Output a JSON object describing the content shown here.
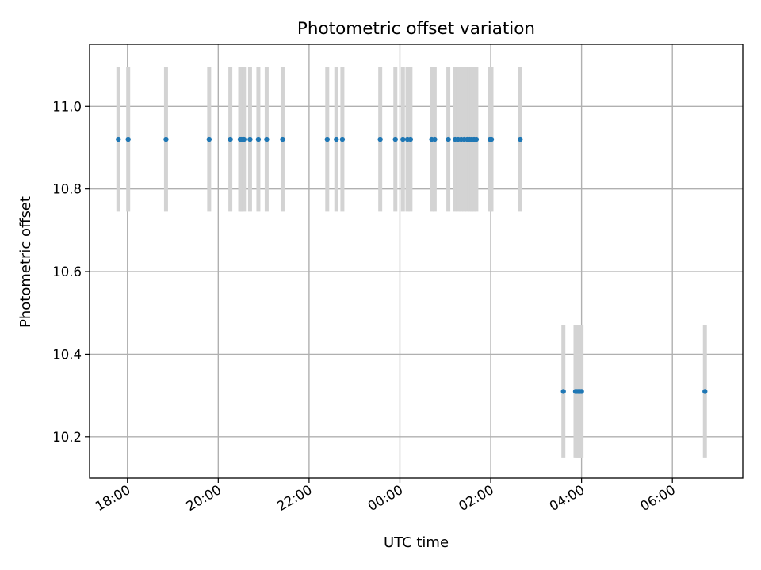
{
  "chart_data": {
    "type": "scatter",
    "title": "Photometric offset variation",
    "xlabel": "UTC time",
    "ylabel": "Photometric offset",
    "x_ticks": [
      "18:00",
      "20:00",
      "22:00",
      "00:00",
      "02:00",
      "04:00",
      "06:00"
    ],
    "y_ticks": [
      "10.2",
      "10.4",
      "10.6",
      "10.8",
      "11.0"
    ],
    "grid": true,
    "colors": {
      "point": "#1f77b4",
      "error_bar": "#d3d3d3"
    },
    "series": [
      {
        "x": [
          "17:48",
          "18:01",
          "18:51",
          "19:48",
          "20:16",
          "20:29",
          "20:31",
          "20:34",
          "20:42",
          "20:53",
          "21:04",
          "21:25",
          "22:24",
          "22:36",
          "22:44",
          "23:34",
          "23:54",
          "24:04",
          "24:10",
          "24:14",
          "24:42",
          "24:46",
          "25:04",
          "25:13",
          "25:17",
          "25:21",
          "25:25",
          "25:29",
          "25:32",
          "25:35",
          "25:38",
          "25:41",
          "25:59",
          "26:01",
          "26:39",
          "27:36",
          "27:52",
          "27:54",
          "27:56",
          "27:58",
          "28:00",
          "30:43"
        ],
        "y": [
          10.92,
          10.92,
          10.92,
          10.92,
          10.92,
          10.92,
          10.92,
          10.92,
          10.92,
          10.92,
          10.92,
          10.92,
          10.92,
          10.92,
          10.92,
          10.92,
          10.92,
          10.92,
          10.92,
          10.92,
          10.92,
          10.92,
          10.92,
          10.92,
          10.92,
          10.92,
          10.92,
          10.92,
          10.92,
          10.92,
          10.92,
          10.92,
          10.92,
          10.92,
          10.92,
          10.31,
          10.31,
          10.31,
          10.31,
          10.31,
          10.31,
          10.31
        ],
        "y_err": [
          0.175,
          0.175,
          0.175,
          0.175,
          0.175,
          0.175,
          0.175,
          0.175,
          0.175,
          0.175,
          0.175,
          0.175,
          0.175,
          0.175,
          0.175,
          0.175,
          0.175,
          0.175,
          0.175,
          0.175,
          0.175,
          0.175,
          0.175,
          0.175,
          0.175,
          0.175,
          0.175,
          0.175,
          0.175,
          0.175,
          0.175,
          0.175,
          0.175,
          0.175,
          0.175,
          0.16,
          0.16,
          0.16,
          0.16,
          0.16,
          0.16,
          0.16
        ]
      }
    ],
    "xlim": [
      "17:10",
      "31:33"
    ],
    "ylim": [
      10.1,
      11.15
    ]
  }
}
